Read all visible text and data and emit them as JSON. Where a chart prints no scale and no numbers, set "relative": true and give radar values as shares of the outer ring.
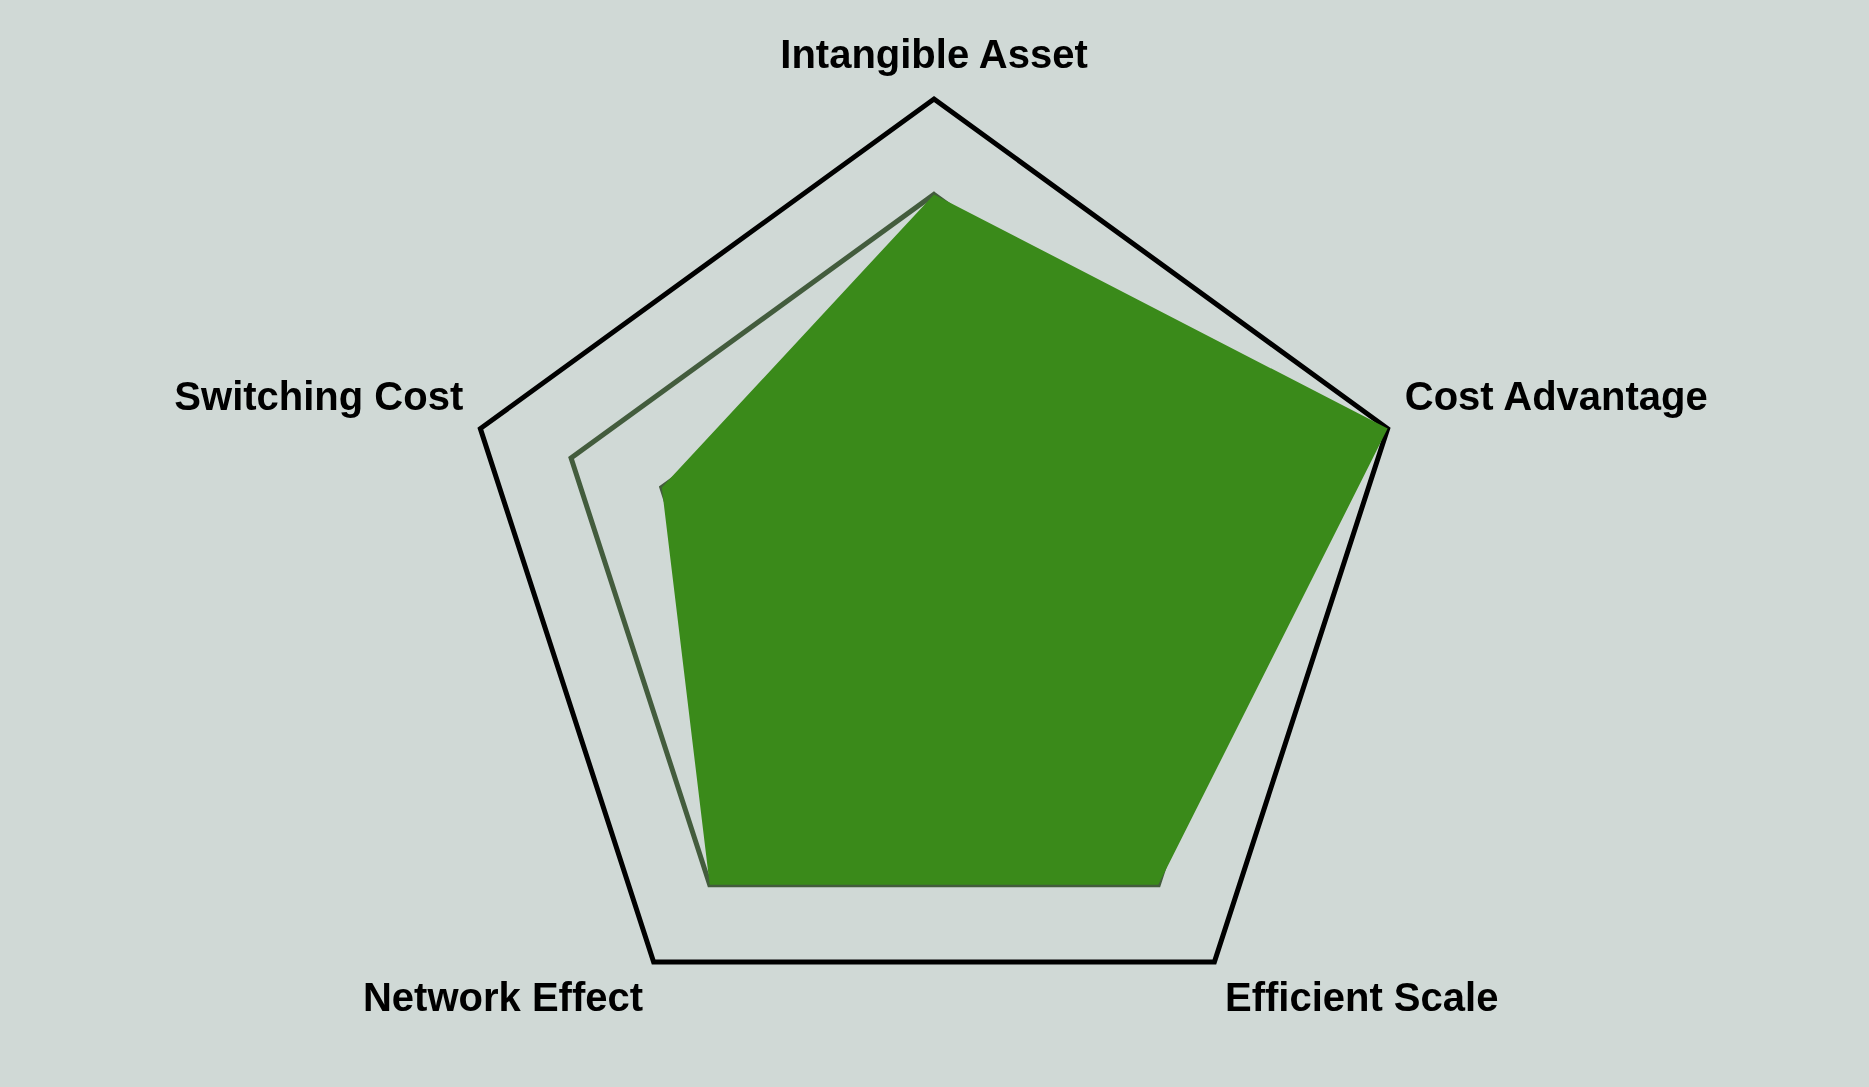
{
  "chart_data": {
    "type": "radar",
    "relative": true,
    "categories": [
      "Intangible Asset",
      "Cost Advantage",
      "Efficient Scale",
      "Network Effect",
      "Switching Cost"
    ],
    "series": [
      {
        "color": "#3a8a1a",
        "values": [
          0.8,
          1,
          0.8,
          0.8,
          0.6
        ]
      }
    ],
    "grid": true,
    "legend": false,
    "marker": "none"
  }
}
